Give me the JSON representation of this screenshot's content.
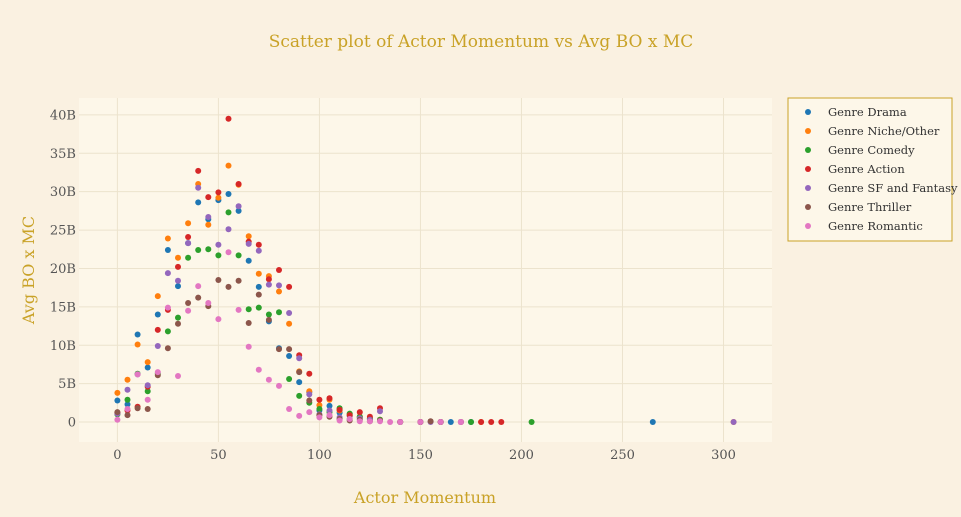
{
  "chart_data": {
    "type": "scatter",
    "title": "Scatter plot of Actor Momentum vs Avg BO x MC",
    "xlabel": "Actor Momentum",
    "ylabel": "Avg BO x MC",
    "xlim": [
      -19,
      324
    ],
    "ylim": [
      -2.6,
      42.2
    ],
    "xticks": [
      0,
      50,
      100,
      150,
      200,
      250,
      300
    ],
    "yticks": [
      0,
      5,
      10,
      15,
      20,
      25,
      30,
      35,
      40
    ],
    "ytick_labels": [
      "0",
      "5B",
      "10B",
      "15B",
      "20B",
      "25B",
      "30B",
      "35B",
      "40B"
    ],
    "grid": true,
    "legend_position": "right",
    "series": [
      {
        "name": "Genre Drama",
        "color": "#1f77b4",
        "points": [
          [
            0,
            2.8
          ],
          [
            5,
            2.3
          ],
          [
            10,
            11.4
          ],
          [
            15,
            7.1
          ],
          [
            20,
            14.0
          ],
          [
            25,
            22.4
          ],
          [
            30,
            17.7
          ],
          [
            35,
            23.3
          ],
          [
            40,
            28.6
          ],
          [
            45,
            26.4
          ],
          [
            50,
            28.9
          ],
          [
            55,
            29.7
          ],
          [
            60,
            27.5
          ],
          [
            65,
            21.0
          ],
          [
            70,
            17.6
          ],
          [
            75,
            13.1
          ],
          [
            80,
            9.6
          ],
          [
            85,
            8.6
          ],
          [
            90,
            5.2
          ],
          [
            95,
            3.9
          ],
          [
            100,
            1.5
          ],
          [
            105,
            2.1
          ],
          [
            110,
            1.2
          ],
          [
            115,
            0.8
          ],
          [
            120,
            0.6
          ],
          [
            125,
            0.4
          ],
          [
            130,
            0.2
          ],
          [
            140,
            0
          ],
          [
            150,
            0
          ],
          [
            160,
            0
          ],
          [
            165,
            0
          ],
          [
            170,
            0
          ],
          [
            175,
            0
          ],
          [
            265,
            0
          ]
        ]
      },
      {
        "name": "Genre Niche/Other",
        "color": "#ff7f0e",
        "points": [
          [
            0,
            3.8
          ],
          [
            5,
            5.5
          ],
          [
            10,
            10.1
          ],
          [
            15,
            7.8
          ],
          [
            20,
            16.4
          ],
          [
            25,
            23.9
          ],
          [
            30,
            21.4
          ],
          [
            35,
            25.9
          ],
          [
            40,
            31.0
          ],
          [
            45,
            25.7
          ],
          [
            50,
            29.2
          ],
          [
            55,
            33.4
          ],
          [
            60,
            30.9
          ],
          [
            65,
            24.2
          ],
          [
            70,
            19.3
          ],
          [
            75,
            19.0
          ],
          [
            80,
            17.0
          ],
          [
            85,
            12.8
          ],
          [
            90,
            6.6
          ],
          [
            95,
            4.0
          ],
          [
            100,
            2.2
          ],
          [
            105,
            2.9
          ],
          [
            110,
            1.5
          ],
          [
            115,
            1.0
          ],
          [
            120,
            0.7
          ],
          [
            125,
            0.5
          ],
          [
            130,
            0.3
          ],
          [
            140,
            0
          ],
          [
            150,
            0
          ],
          [
            160,
            0
          ],
          [
            170,
            0
          ],
          [
            180,
            0
          ],
          [
            305,
            0
          ]
        ]
      },
      {
        "name": "Genre Comedy",
        "color": "#2ca02c",
        "points": [
          [
            0,
            1.0
          ],
          [
            5,
            2.9
          ],
          [
            10,
            6.3
          ],
          [
            15,
            4.0
          ],
          [
            20,
            6.3
          ],
          [
            25,
            11.8
          ],
          [
            30,
            13.6
          ],
          [
            35,
            21.4
          ],
          [
            40,
            22.4
          ],
          [
            45,
            22.5
          ],
          [
            50,
            21.7
          ],
          [
            55,
            27.3
          ],
          [
            60,
            21.7
          ],
          [
            65,
            14.7
          ],
          [
            70,
            14.9
          ],
          [
            75,
            14.0
          ],
          [
            80,
            14.3
          ],
          [
            85,
            5.6
          ],
          [
            90,
            3.4
          ],
          [
            95,
            2.5
          ],
          [
            100,
            1.7
          ],
          [
            105,
            1.3
          ],
          [
            110,
            1.8
          ],
          [
            115,
            1.1
          ],
          [
            120,
            0.7
          ],
          [
            125,
            0.5
          ],
          [
            130,
            0.3
          ],
          [
            140,
            0
          ],
          [
            150,
            0
          ],
          [
            160,
            0
          ],
          [
            175,
            0
          ],
          [
            205,
            0
          ]
        ]
      },
      {
        "name": "Genre Action",
        "color": "#d62728",
        "points": [
          [
            0,
            1.2
          ],
          [
            5,
            1.5
          ],
          [
            10,
            2.0
          ],
          [
            15,
            4.6
          ],
          [
            20,
            12.0
          ],
          [
            25,
            14.6
          ],
          [
            30,
            20.2
          ],
          [
            35,
            24.1
          ],
          [
            40,
            32.7
          ],
          [
            45,
            29.3
          ],
          [
            50,
            29.9
          ],
          [
            55,
            39.5
          ],
          [
            60,
            31.0
          ],
          [
            65,
            23.5
          ],
          [
            70,
            23.1
          ],
          [
            75,
            18.6
          ],
          [
            80,
            19.8
          ],
          [
            85,
            17.6
          ],
          [
            90,
            8.7
          ],
          [
            95,
            6.3
          ],
          [
            100,
            2.9
          ],
          [
            105,
            3.1
          ],
          [
            110,
            1.6
          ],
          [
            115,
            0.9
          ],
          [
            120,
            1.3
          ],
          [
            125,
            0.7
          ],
          [
            130,
            1.8
          ],
          [
            140,
            0
          ],
          [
            150,
            0
          ],
          [
            160,
            0
          ],
          [
            170,
            0
          ],
          [
            180,
            0
          ],
          [
            185,
            0
          ],
          [
            190,
            0
          ]
        ]
      },
      {
        "name": "Genre SF and Fantasy",
        "color": "#9467bd",
        "points": [
          [
            0,
            1.1
          ],
          [
            5,
            4.2
          ],
          [
            10,
            6.2
          ],
          [
            15,
            4.8
          ],
          [
            20,
            9.9
          ],
          [
            25,
            19.4
          ],
          [
            30,
            18.4
          ],
          [
            35,
            23.3
          ],
          [
            40,
            30.5
          ],
          [
            45,
            26.7
          ],
          [
            50,
            23.1
          ],
          [
            55,
            25.1
          ],
          [
            60,
            28.1
          ],
          [
            65,
            23.2
          ],
          [
            70,
            22.3
          ],
          [
            75,
            17.9
          ],
          [
            80,
            17.8
          ],
          [
            85,
            14.2
          ],
          [
            90,
            8.3
          ],
          [
            95,
            3.6
          ],
          [
            100,
            1.0
          ],
          [
            105,
            1.5
          ],
          [
            110,
            0.6
          ],
          [
            115,
            0.4
          ],
          [
            120,
            0.5
          ],
          [
            125,
            0.3
          ],
          [
            130,
            1.4
          ],
          [
            140,
            0
          ],
          [
            150,
            0
          ],
          [
            155,
            0
          ],
          [
            160,
            0
          ],
          [
            170,
            0
          ],
          [
            305,
            0
          ]
        ]
      },
      {
        "name": "Genre Thriller",
        "color": "#8c564b",
        "points": [
          [
            0,
            1.3
          ],
          [
            5,
            0.9
          ],
          [
            10,
            1.8
          ],
          [
            15,
            1.7
          ],
          [
            20,
            6.1
          ],
          [
            25,
            9.6
          ],
          [
            30,
            12.8
          ],
          [
            35,
            15.5
          ],
          [
            40,
            16.2
          ],
          [
            45,
            15.1
          ],
          [
            50,
            18.5
          ],
          [
            55,
            17.6
          ],
          [
            60,
            18.4
          ],
          [
            65,
            12.9
          ],
          [
            70,
            16.6
          ],
          [
            75,
            13.3
          ],
          [
            80,
            9.5
          ],
          [
            85,
            9.5
          ],
          [
            90,
            6.5
          ],
          [
            95,
            2.8
          ],
          [
            100,
            0.9
          ],
          [
            105,
            0.7
          ],
          [
            110,
            0.4
          ],
          [
            115,
            0.2
          ],
          [
            120,
            0.3
          ],
          [
            125,
            0.1
          ],
          [
            130,
            0.2
          ],
          [
            150,
            0
          ],
          [
            155,
            0.1
          ],
          [
            160,
            0
          ]
        ]
      },
      {
        "name": "Genre Romantic",
        "color": "#e377c2",
        "points": [
          [
            0,
            0.3
          ],
          [
            5,
            1.7
          ],
          [
            10,
            6.2
          ],
          [
            15,
            2.9
          ],
          [
            20,
            6.5
          ],
          [
            25,
            14.9
          ],
          [
            30,
            6.0
          ],
          [
            35,
            14.5
          ],
          [
            40,
            17.7
          ],
          [
            45,
            15.5
          ],
          [
            50,
            13.4
          ],
          [
            55,
            22.1
          ],
          [
            60,
            14.6
          ],
          [
            65,
            9.8
          ],
          [
            70,
            6.8
          ],
          [
            75,
            5.5
          ],
          [
            80,
            4.7
          ],
          [
            85,
            1.7
          ],
          [
            90,
            0.8
          ],
          [
            95,
            1.3
          ],
          [
            100,
            0.6
          ],
          [
            105,
            0.9
          ],
          [
            110,
            0.2
          ],
          [
            115,
            0.4
          ],
          [
            120,
            0.1
          ],
          [
            125,
            0.1
          ],
          [
            130,
            0.1
          ],
          [
            135,
            0
          ],
          [
            140,
            0
          ],
          [
            150,
            0
          ],
          [
            160,
            0
          ],
          [
            170,
            0
          ]
        ]
      }
    ]
  }
}
